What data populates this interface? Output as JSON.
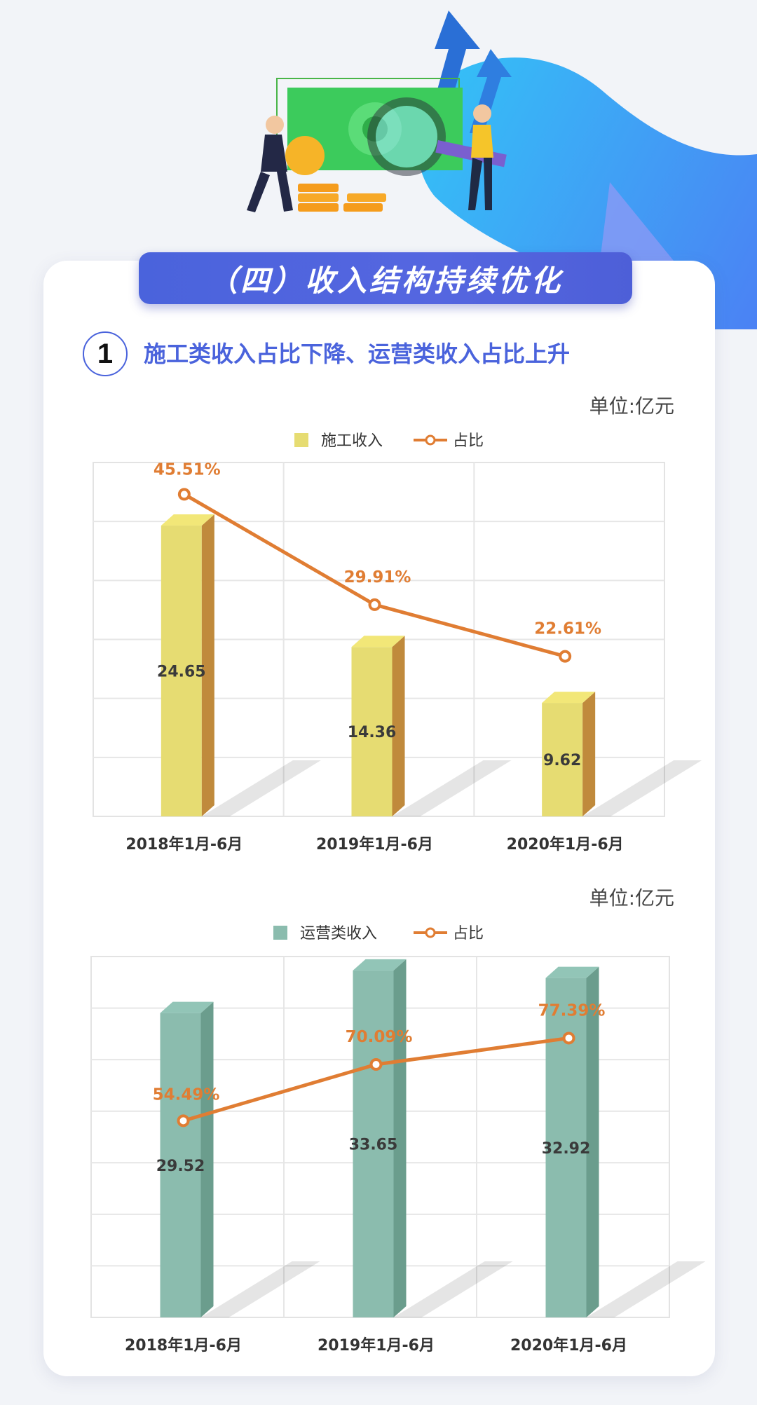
{
  "header": {
    "title": "（四）收入结构持续优化"
  },
  "section": {
    "number": "1",
    "title": "施工类收入占比下降、运营类收入占比上升"
  },
  "colors": {
    "accent": "#4a63dc",
    "line": "#e07d33",
    "bar1": "#e6dc72",
    "bar2": "#8bbcae"
  },
  "chart_data": [
    {
      "type": "bar",
      "unit": "单位:亿元",
      "categories": [
        "2018年1月-6月",
        "2019年1月-6月",
        "2020年1月-6月"
      ],
      "series": [
        {
          "name": "施工收入",
          "kind": "bar",
          "values": [
            24.65,
            14.36,
            9.62
          ]
        },
        {
          "name": "占比",
          "kind": "line",
          "values": [
            45.51,
            29.91,
            22.61
          ],
          "labels": [
            "45.51%",
            "29.91%",
            "22.61%"
          ]
        }
      ],
      "ylim": [
        0,
        30
      ],
      "pct_lim": [
        0,
        50
      ],
      "grid": true,
      "legend": "top"
    },
    {
      "type": "bar",
      "unit": "单位:亿元",
      "categories": [
        "2018年1月-6月",
        "2019年1月-6月",
        "2020年1月-6月"
      ],
      "series": [
        {
          "name": "运营类收入",
          "kind": "bar",
          "values": [
            29.52,
            33.65,
            32.92
          ]
        },
        {
          "name": "占比",
          "kind": "line",
          "values": [
            54.49,
            70.09,
            77.39
          ],
          "labels": [
            "54.49%",
            "70.09%",
            "77.39%"
          ]
        }
      ],
      "ylim": [
        0,
        35
      ],
      "pct_lim": [
        0,
        100
      ],
      "grid": true,
      "legend": "top"
    }
  ]
}
